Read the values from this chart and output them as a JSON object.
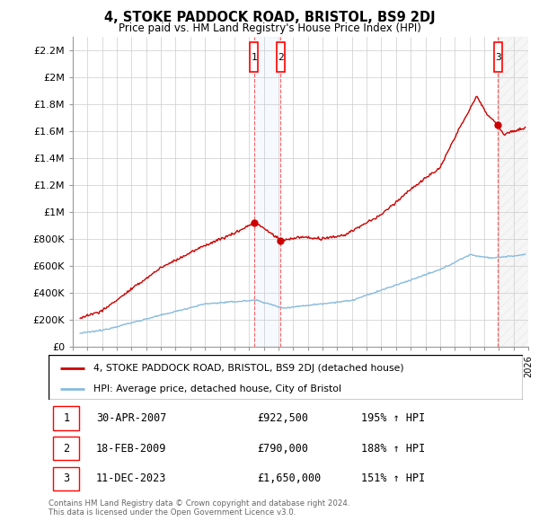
{
  "title": "4, STOKE PADDOCK ROAD, BRISTOL, BS9 2DJ",
  "subtitle": "Price paid vs. HM Land Registry's House Price Index (HPI)",
  "ylabel_ticks": [
    "£0",
    "£200K",
    "£400K",
    "£600K",
    "£800K",
    "£1M",
    "£1.2M",
    "£1.4M",
    "£1.6M",
    "£1.8M",
    "£2M",
    "£2.2M"
  ],
  "ylim": [
    0,
    2300000
  ],
  "xlim": [
    1995.5,
    2026.0
  ],
  "hpi_color": "#88bbdd",
  "price_color": "#cc0000",
  "sale1_year": 2007.33,
  "sale1_price": 922500,
  "sale1_label": "1",
  "sale1_date": "30-APR-2007",
  "sale1_fmt": "£922,500",
  "sale1_pct": "195% ↑ HPI",
  "sale2_year": 2009.13,
  "sale2_price": 790000,
  "sale2_label": "2",
  "sale2_date": "18-FEB-2009",
  "sale2_fmt": "£790,000",
  "sale2_pct": "188% ↑ HPI",
  "sale3_year": 2023.95,
  "sale3_price": 1650000,
  "sale3_label": "3",
  "sale3_date": "11-DEC-2023",
  "sale3_fmt": "£1,650,000",
  "sale3_pct": "151% ↑ HPI",
  "legend_line1": "4, STOKE PADDOCK ROAD, BRISTOL, BS9 2DJ (detached house)",
  "legend_line2": "HPI: Average price, detached house, City of Bristol",
  "footer1": "Contains HM Land Registry data © Crown copyright and database right 2024.",
  "footer2": "This data is licensed under the Open Government Licence v3.0."
}
